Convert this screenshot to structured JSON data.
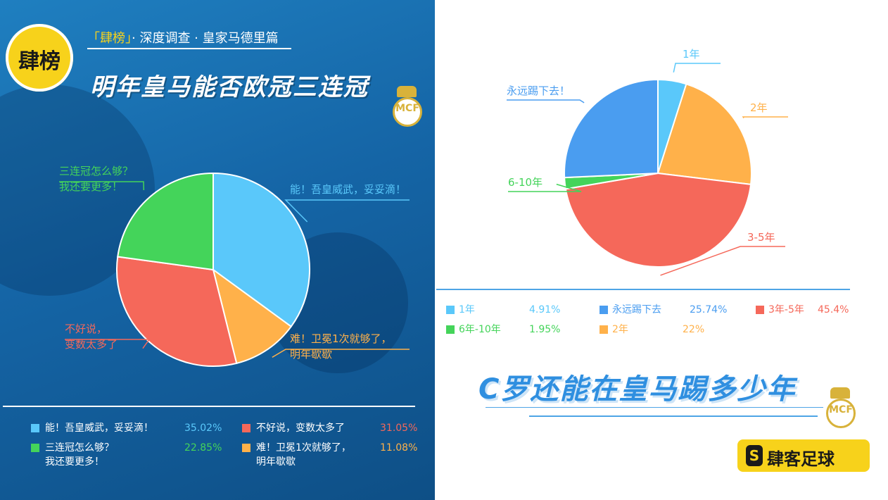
{
  "header": {
    "badge_text": "肆榜",
    "subtitle_highlight": "「肆榜」",
    "subtitle_rest": "· 深度调查 · 皇家马德里篇",
    "title_left": "明年皇马能否欧冠三连冠",
    "crest_letters": "MCF"
  },
  "colors": {
    "blue": "#5ac8fa",
    "red": "#f5685a",
    "green": "#44d45a",
    "orange": "#ffb14a",
    "dark_blue": "#4a9df0",
    "title_blue": "#2f8fe0",
    "brand_yellow": "#f7d21b"
  },
  "chart_data": [
    {
      "type": "pie",
      "title": "明年皇马能否欧冠三连冠",
      "series": [
        {
          "name": "能！吾皇威武，妥妥滴！",
          "value": 35.02,
          "value_label": "35.02%",
          "color": "#5ac8fa"
        },
        {
          "name": "难！卫冕1次就够了，明年歇歇",
          "value": 11.08,
          "value_label": "11.08%",
          "color": "#ffb14a"
        },
        {
          "name": "不好说，变数太多了",
          "value": 31.05,
          "value_label": "31.05%",
          "color": "#f5685a"
        },
        {
          "name": "三连冠怎么够？我还要更多！",
          "value": 22.85,
          "value_label": "22.85%",
          "color": "#44d45a"
        }
      ],
      "slice_labels": [
        {
          "lines": [
            "能！吾皇威武，妥妥滴！"
          ],
          "color": "#5ac8fa"
        },
        {
          "lines": [
            "难！卫冕1次就够了，",
            "明年歇歇"
          ],
          "color": "#ffb14a"
        },
        {
          "lines": [
            "不好说，",
            "变数太多了"
          ],
          "color": "#f5685a"
        },
        {
          "lines": [
            "三连冠怎么够？",
            "我还要更多！"
          ],
          "color": "#44d45a"
        }
      ],
      "legend": [
        {
          "label": "能！吾皇威武，妥妥滴！",
          "value": "35.02%",
          "color": "#5ac8fa"
        },
        {
          "label": "不好说，变数太多了",
          "value": "31.05%",
          "color": "#f5685a"
        },
        {
          "label": "三连冠怎么够？",
          "label2": "我还要更多！",
          "value": "22.85%",
          "color": "#44d45a"
        },
        {
          "label": "难！卫冕1次就够了，",
          "label2": "明年歇歇",
          "value": "11.08%",
          "color": "#ffb14a"
        }
      ]
    },
    {
      "type": "pie",
      "title": "C罗还能在皇马踢多少年",
      "series": [
        {
          "name": "1年",
          "value": 4.91,
          "value_label": "4.91%",
          "color": "#5ac8fa"
        },
        {
          "name": "2年",
          "value": 22,
          "value_label": "22%",
          "color": "#ffb14a"
        },
        {
          "name": "3年-5年",
          "value": 45.4,
          "value_label": "45.4%",
          "color": "#f5685a"
        },
        {
          "name": "6年-10年",
          "value": 1.95,
          "value_label": "1.95%",
          "color": "#44d45a"
        },
        {
          "name": "永远踢下去",
          "value": 25.74,
          "value_label": "25.74%",
          "color": "#4a9df0"
        }
      ],
      "slice_labels": [
        {
          "text": "1年",
          "color": "#5ac8fa"
        },
        {
          "text": "2年",
          "color": "#ffb14a"
        },
        {
          "text": "3-5年",
          "color": "#f5685a"
        },
        {
          "text": "6-10年",
          "color": "#44d45a"
        },
        {
          "text": "永远踢下去！",
          "color": "#4a9df0"
        }
      ],
      "legend": [
        {
          "label": "1年",
          "value": "4.91%",
          "color": "#5ac8fa"
        },
        {
          "label": "永远踢下去",
          "value": "25.74%",
          "color": "#4a9df0"
        },
        {
          "label": "3年-5年",
          "value": "45.4%",
          "color": "#f5685a"
        },
        {
          "label": "6年-10年",
          "value": "1.95%",
          "color": "#44d45a"
        },
        {
          "label": "2年",
          "value": "22%",
          "color": "#ffb14a"
        }
      ]
    }
  ],
  "footer": {
    "title_right": "C罗还能在皇马踢多少年",
    "brand_logo": "S",
    "brand_name": "肆客足球"
  }
}
